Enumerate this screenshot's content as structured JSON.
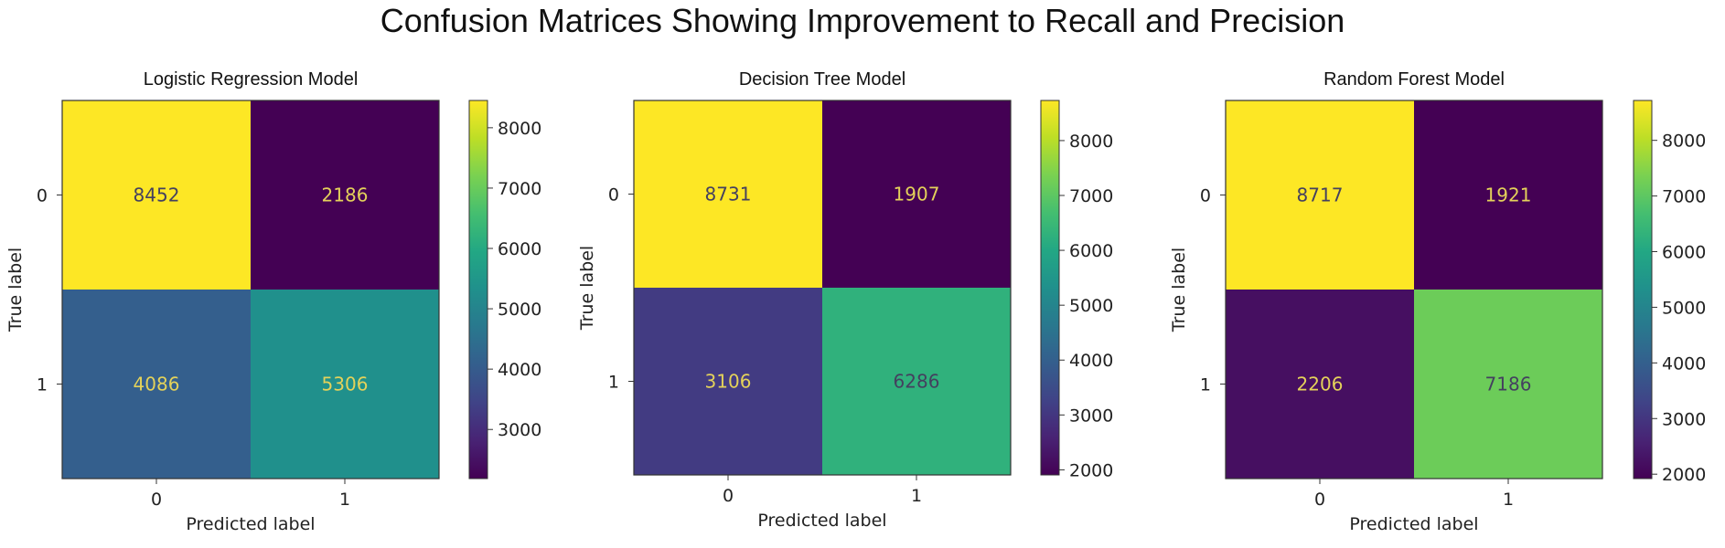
{
  "title": "Confusion Matrices Showing Improvement to Recall and Precision",
  "chart_data": [
    {
      "type": "heatmap",
      "title": "Logistic Regression Model",
      "xlabel": "Predicted label",
      "ylabel": "True label",
      "x_categories": [
        "0",
        "1"
      ],
      "y_categories": [
        "0",
        "1"
      ],
      "values": [
        [
          8452,
          2186
        ],
        [
          4086,
          5306
        ]
      ],
      "colormap": "viridis",
      "colorbar_ticks": [
        3000,
        4000,
        5000,
        6000,
        7000,
        8000
      ],
      "grid": false
    },
    {
      "type": "heatmap",
      "title": "Decision Tree Model",
      "xlabel": "Predicted label",
      "ylabel": "True label",
      "x_categories": [
        "0",
        "1"
      ],
      "y_categories": [
        "0",
        "1"
      ],
      "values": [
        [
          8731,
          1907
        ],
        [
          3106,
          6286
        ]
      ],
      "colormap": "viridis",
      "colorbar_ticks": [
        2000,
        3000,
        4000,
        5000,
        6000,
        7000,
        8000
      ],
      "grid": false
    },
    {
      "type": "heatmap",
      "title": "Random Forest Model",
      "xlabel": "Predicted label",
      "ylabel": "True label",
      "x_categories": [
        "0",
        "1"
      ],
      "y_categories": [
        "0",
        "1"
      ],
      "values": [
        [
          8717,
          1921
        ],
        [
          2206,
          7186
        ]
      ],
      "colormap": "viridis",
      "colorbar_ticks": [
        2000,
        3000,
        4000,
        5000,
        6000,
        7000,
        8000
      ],
      "grid": false
    }
  ]
}
